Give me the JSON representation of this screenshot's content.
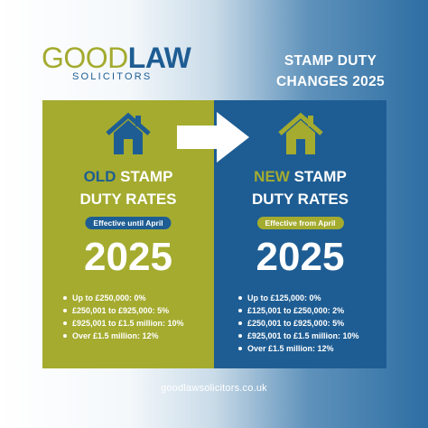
{
  "brand": {
    "logo_good": "GOOD",
    "logo_law": "LAW",
    "logo_sub": "SOLICITORS"
  },
  "headline": {
    "line1": "STAMP DUTY",
    "line2": "CHANGES 2025"
  },
  "old_panel": {
    "title_highlight": "OLD",
    "title_rest": " STAMP",
    "title_line2": "DUTY RATES",
    "effective": "Effective until April",
    "year": "2025",
    "rates": [
      "Up to £250,000: 0%",
      "£250,001 to £925,000: 5%",
      "£925,001 to £1.5 million: 10%",
      "Over £1.5 million: 12%"
    ]
  },
  "new_panel": {
    "title_highlight": "NEW",
    "title_rest": " STAMP",
    "title_line2": "DUTY RATES",
    "effective": "Effective from April",
    "year": "2025",
    "rates": [
      "Up to £125,000: 0%",
      "£125,001 to £250,000: 2%",
      "£250,001 to £925,000: 5%",
      "£925,001 to £1.5 million: 10%",
      "Over £1.5 million: 12%"
    ]
  },
  "footer": {
    "website": "goodlawsolicitors.co.uk"
  },
  "colors": {
    "green": "#a4ab2f",
    "blue": "#1e5d93"
  },
  "icons": {
    "house": "house-icon",
    "arrow": "arrow-right-icon"
  }
}
